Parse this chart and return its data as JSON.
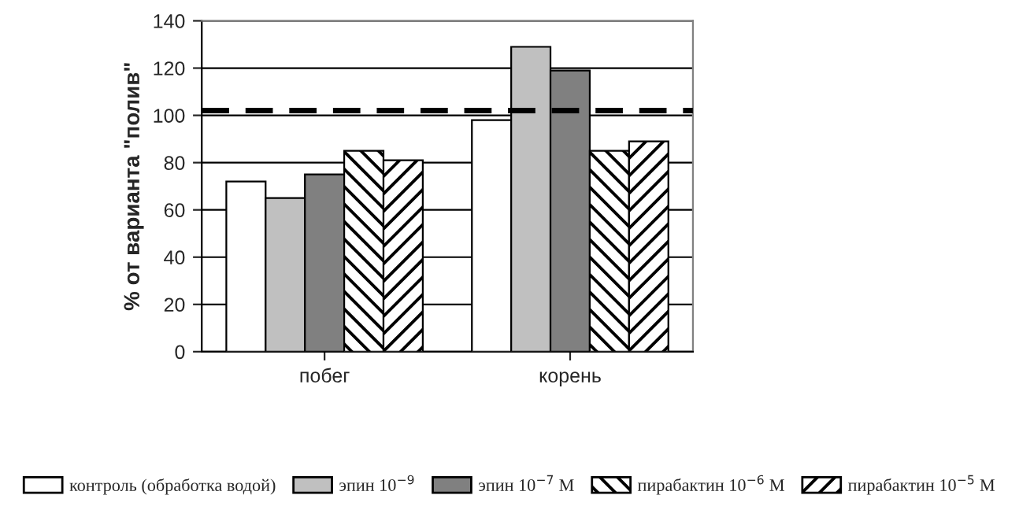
{
  "chart_data": {
    "type": "bar",
    "ylabel": "% от варианта \"полив\"",
    "categories": [
      "побег",
      "корень"
    ],
    "series": [
      {
        "name": "контроль (обработка водой)",
        "color": "#ffffff",
        "values": [
          72,
          98
        ]
      },
      {
        "name": "эпин 10$^{−9}$",
        "color": "#c0c0c0",
        "values": [
          65,
          129
        ]
      },
      {
        "name": "эпин 10$^{−7}$ М",
        "color": "#808080",
        "values": [
          75,
          119
        ]
      },
      {
        "name": "пирабактин 10$^{−6}$ М",
        "color": "#ffffff",
        "values": [
          85,
          85
        ]
      },
      {
        "name": "пирабактин 10$^{−5}$ М",
        "color": "#ffffff",
        "values": [
          81,
          89
        ]
      }
    ],
    "ylim": [
      0,
      140
    ],
    "yticks": [
      0,
      20,
      40,
      60,
      80,
      100,
      120,
      140
    ],
    "grid": "y",
    "legend": "bottom",
    "ref_lines": [
      {
        "axis": "y",
        "value": 102,
        "color": "#000000",
        "line_style": "dashed"
      }
    ]
  }
}
